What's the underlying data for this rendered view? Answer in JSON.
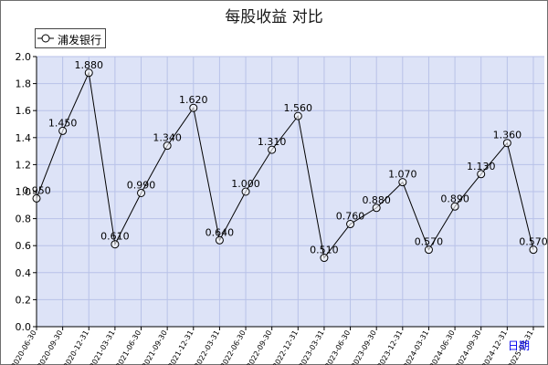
{
  "chart_data": {
    "type": "line",
    "title": "每股收益  对比",
    "xlabel": "日期",
    "ylabel": "",
    "ylim": [
      0,
      2.0
    ],
    "yticks": [
      "0.0",
      "0.2",
      "0.4",
      "0.6",
      "0.8",
      "1.0",
      "1.2",
      "1.4",
      "1.6",
      "1.8",
      "2.0"
    ],
    "grid": true,
    "legend": "top-left",
    "categories": [
      "2020-06-30",
      "2020-09-30",
      "2020-12-31",
      "2021-03-31",
      "2021-06-30",
      "2021-09-30",
      "2021-12-31",
      "2022-03-31",
      "2022-06-30",
      "2022-09-30",
      "2022-12-31",
      "2023-03-31",
      "2023-06-30",
      "2023-09-30",
      "2023-12-31",
      "2024-03-31",
      "2024-06-30",
      "2024-09-30",
      "2024-12-31",
      "2025-03-31"
    ],
    "tick_labels": [
      "2020-06-30",
      "2020-09-30",
      "2020-12-31",
      "2021-03-31",
      "2021-06-30",
      "2021-09-30",
      "2021-12-31",
      "2022-03-31",
      "2022-06-30",
      "2022-09-30",
      "2022-12-31",
      "2023-03-31",
      "2023-06-30",
      "2023-09-30",
      "2023-12-31",
      "2024-03-31",
      "2024-06-30",
      "2024-09-30",
      "2024-12-31",
      "2025-03-31"
    ],
    "series": [
      {
        "name": "浦发银行",
        "color": "#000000",
        "values": [
          0.95,
          1.45,
          1.88,
          0.61,
          0.99,
          1.34,
          1.62,
          0.64,
          1.0,
          1.31,
          1.56,
          0.51,
          0.76,
          0.88,
          1.07,
          0.57,
          0.89,
          1.13,
          1.36,
          0.57
        ],
        "labels": [
          "0.950",
          "1.450",
          "1.880",
          "0.610",
          "0.990",
          "1.340",
          "1.620",
          "0.640",
          "1.000",
          "1.310",
          "1.560",
          "0.510",
          "0.760",
          "0.880",
          "1.070",
          "0.570",
          "0.890",
          "1.130",
          "1.360",
          "0.570"
        ]
      }
    ],
    "colors": {
      "plot_background": "#dde3f7",
      "grid": "#b8c2e8",
      "axis": "#000000"
    }
  }
}
